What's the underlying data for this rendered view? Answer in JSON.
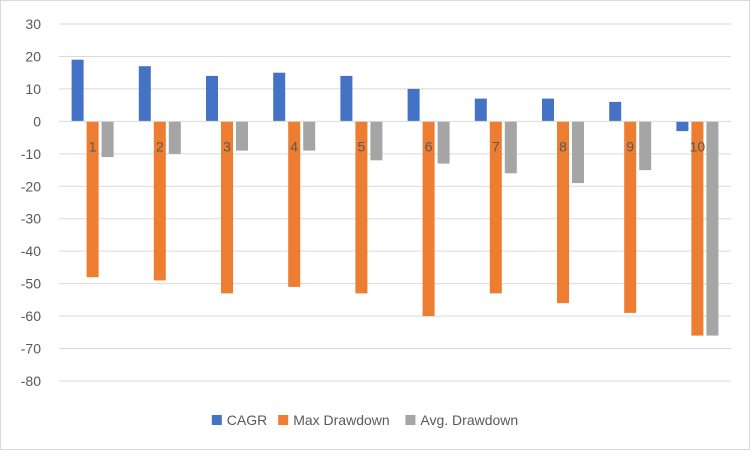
{
  "chart_data": {
    "type": "bar",
    "categories": [
      "1",
      "2",
      "3",
      "4",
      "5",
      "6",
      "7",
      "8",
      "9",
      "10"
    ],
    "series": [
      {
        "name": "CAGR",
        "values": [
          19,
          17,
          14,
          15,
          14,
          10,
          7,
          7,
          6,
          -3
        ],
        "color": "#4472c4"
      },
      {
        "name": "Max Drawdown",
        "values": [
          -48,
          -49,
          -53,
          -51,
          -53,
          -60,
          -53,
          -56,
          -59,
          -66
        ],
        "color": "#ed7d31"
      },
      {
        "name": "Avg. Drawdown",
        "values": [
          -11,
          -10,
          -9,
          -9,
          -12,
          -13,
          -16,
          -19,
          -15,
          -66
        ],
        "color": "#a5a5a5"
      }
    ],
    "ylim": [
      -80,
      30
    ],
    "yticks": [
      "30",
      "20",
      "10",
      "0",
      "-10",
      "-20",
      "-30",
      "-40",
      "-50",
      "-60",
      "-70",
      "-80"
    ],
    "title": "",
    "xlabel": "",
    "ylabel": "",
    "grid": true,
    "legend_position": "bottom"
  }
}
